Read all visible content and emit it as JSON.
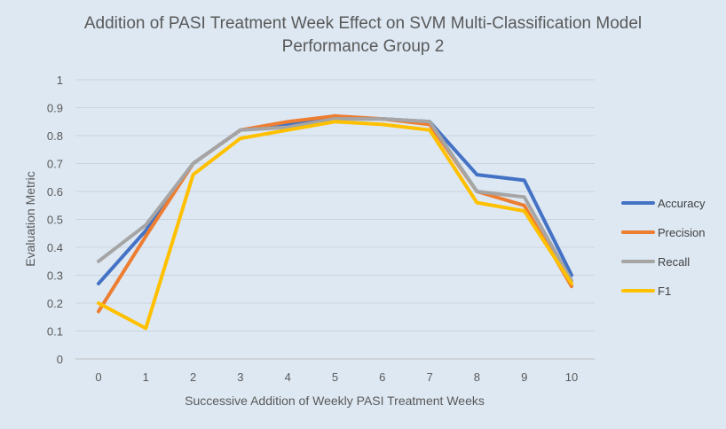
{
  "chart_data": {
    "type": "line",
    "title_line1": "Addition of PASI Treatment Week Effect on SVM Multi-Classification Model",
    "title_line2": "Performance Group 2",
    "xlabel": "Successive Addition of Weekly PASI Treatment Weeks",
    "ylabel": "Evaluation Metric",
    "categories": [
      "0",
      "1",
      "2",
      "3",
      "4",
      "5",
      "6",
      "7",
      "8",
      "9",
      "10"
    ],
    "ylim": [
      0,
      1
    ],
    "yticks": [
      "0",
      "0.1",
      "0.2",
      "0.3",
      "0.4",
      "0.5",
      "0.6",
      "0.7",
      "0.8",
      "0.9",
      "1"
    ],
    "grid": true,
    "legend_position": "right",
    "series": [
      {
        "name": "Accuracy",
        "color": "#4472c4",
        "values": [
          0.27,
          0.46,
          0.7,
          0.82,
          0.84,
          0.86,
          0.86,
          0.85,
          0.66,
          0.64,
          0.3
        ]
      },
      {
        "name": "Precision",
        "color": "#ed7d31",
        "values": [
          0.17,
          0.44,
          0.7,
          0.82,
          0.85,
          0.87,
          0.86,
          0.84,
          0.6,
          0.55,
          0.26
        ]
      },
      {
        "name": "Recall",
        "color": "#a5a5a5",
        "values": [
          0.35,
          0.48,
          0.7,
          0.82,
          0.83,
          0.86,
          0.86,
          0.85,
          0.6,
          0.58,
          0.28
        ]
      },
      {
        "name": "F1",
        "color": "#ffc000",
        "values": [
          0.2,
          0.11,
          0.66,
          0.79,
          0.82,
          0.85,
          0.84,
          0.82,
          0.56,
          0.53,
          0.27
        ]
      }
    ]
  }
}
